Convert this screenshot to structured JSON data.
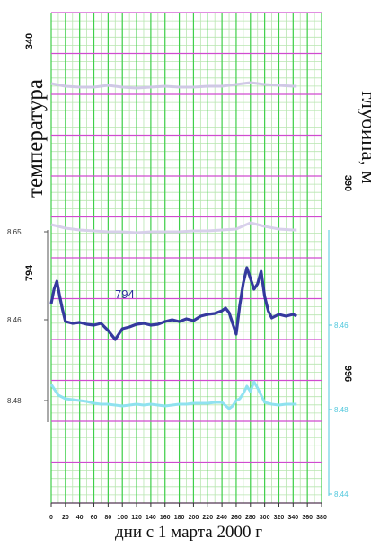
{
  "chart_data": {
    "type": "line",
    "xlabel": "дни с 1 марта 2000 г",
    "ylabel_left": "температура",
    "ylabel_right": "глубина, м",
    "depth_labels_left": [
      "340",
      "794"
    ],
    "depth_labels_right": [
      "390",
      "996"
    ],
    "inline_annotation": "794",
    "left_ticks": [
      "8.65",
      "8.46",
      "8.48"
    ],
    "right_ticks": [
      "8.46",
      "8.48",
      "8.44"
    ],
    "x_ticks": [
      "0",
      "20",
      "40",
      "60",
      "80",
      "100",
      "120",
      "140",
      "160",
      "180",
      "200",
      "220",
      "240",
      "260",
      "280",
      "300",
      "320",
      "340",
      "360",
      "380"
    ],
    "xlim": [
      0,
      380
    ],
    "series": [
      {
        "color": "#cfc6e6",
        "x": [
          0,
          20,
          40,
          60,
          80,
          100,
          120,
          140,
          160,
          180,
          200,
          220,
          240,
          260,
          280,
          300,
          320,
          340,
          345
        ],
        "values": [
          93,
          96,
          97,
          97,
          95,
          97,
          98,
          97,
          96,
          97,
          97,
          96,
          96,
          94,
          92,
          94,
          95,
          96,
          96
        ]
      },
      {
        "color": "#d6cdea",
        "x": [
          0,
          20,
          40,
          60,
          80,
          100,
          120,
          140,
          160,
          180,
          200,
          220,
          240,
          260,
          280,
          300,
          320,
          340,
          345
        ],
        "values": [
          250,
          254,
          256,
          257,
          258,
          258,
          259,
          258,
          258,
          258,
          257,
          257,
          256,
          255,
          248,
          252,
          255,
          256,
          256
        ]
      },
      {
        "color": "#2b2f9a",
        "x": [
          0,
          4,
          8,
          12,
          16,
          20,
          30,
          40,
          50,
          60,
          70,
          80,
          90,
          100,
          110,
          120,
          130,
          140,
          150,
          160,
          170,
          180,
          190,
          200,
          210,
          220,
          230,
          240,
          245,
          250,
          255,
          260,
          265,
          270,
          275,
          280,
          285,
          290,
          295,
          300,
          305,
          310,
          320,
          330,
          340,
          345
        ],
        "values": [
          338,
          322,
          313,
          330,
          345,
          358,
          360,
          359,
          361,
          362,
          360,
          368,
          378,
          366,
          364,
          361,
          360,
          362,
          361,
          358,
          356,
          358,
          355,
          357,
          352,
          350,
          349,
          346,
          343,
          348,
          360,
          372,
          340,
          315,
          298,
          310,
          322,
          316,
          302,
          330,
          346,
          354,
          350,
          352,
          350,
          352
        ]
      },
      {
        "color": "#8be0f0",
        "x": [
          0,
          5,
          10,
          15,
          20,
          30,
          40,
          50,
          60,
          70,
          80,
          90,
          100,
          110,
          120,
          130,
          140,
          150,
          160,
          170,
          180,
          190,
          200,
          210,
          220,
          230,
          240,
          250,
          255,
          260,
          265,
          270,
          275,
          280,
          285,
          290,
          300,
          310,
          320,
          330,
          340,
          345
        ],
        "values": [
          428,
          434,
          440,
          442,
          444,
          445,
          446,
          447,
          449,
          450,
          450,
          451,
          452,
          451,
          450,
          451,
          450,
          451,
          452,
          451,
          450,
          450,
          449,
          449,
          449,
          448,
          448,
          455,
          452,
          446,
          444,
          438,
          430,
          436,
          425,
          432,
          448,
          450,
          451,
          450,
          450,
          450
        ]
      }
    ]
  }
}
